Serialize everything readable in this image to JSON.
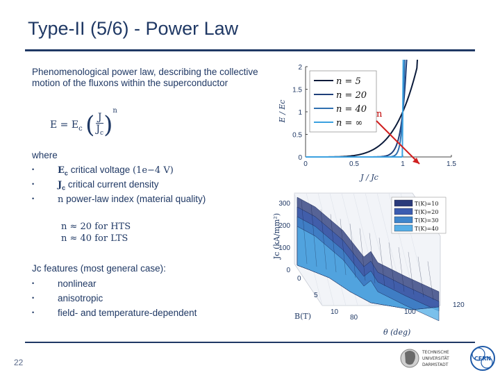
{
  "title": "Type-II (5/6) - Power Law",
  "page_number": "22",
  "intro": "Phenomenological power law, describing the collective motion of the fluxons within the superconductor",
  "formula": {
    "lhs": "E = E",
    "lhs_sub": "c",
    "num": "J",
    "den": "J",
    "den_sub": "c",
    "exp": "n"
  },
  "where_label": "where",
  "definitions": [
    {
      "sym": "E",
      "sub": "c",
      "text": " critical voltage ",
      "extra": "(1e−4 V)"
    },
    {
      "sym": "J",
      "sub": "c",
      "text": " critical current density",
      "extra": ""
    },
    {
      "sym": "n",
      "sub": "",
      "text": " power-law index (material quality)",
      "extra": ""
    }
  ],
  "n_values": [
    "n ≈ 20 for HTS",
    "n ≈ 40 for LTS"
  ],
  "features_head": "Jc features (most general case):",
  "features": [
    "nonlinear",
    "anisotropic",
    "field- and temperature-dependent"
  ],
  "bullet": "•",
  "chart_data": [
    {
      "type": "line",
      "xlabel": "J / Jc",
      "ylabel": "E / Ec",
      "xlim": [
        0,
        1.5
      ],
      "ylim": [
        0,
        2
      ],
      "xticks": [
        "0",
        "0.5",
        "1",
        "1.5"
      ],
      "yticks": [
        "0",
        "0.5",
        "1",
        "1.5",
        "2"
      ],
      "legend_position": "top-left",
      "annotation": "n",
      "series": [
        {
          "name": "n = 5",
          "n": 5,
          "color": "#0a1a3a"
        },
        {
          "name": "n = 20",
          "n": 20,
          "color": "#1f3f7a"
        },
        {
          "name": "n = 40",
          "n": 40,
          "color": "#2f6fb0"
        },
        {
          "name": "n = ∞",
          "n": 1000,
          "color": "#3aa0e0"
        }
      ]
    },
    {
      "type": "surface",
      "xlabel": "B(T)",
      "ylabel": "θ (deg)",
      "zlabel": "Jc (kA/mm²)",
      "zticks": [
        "0",
        "100",
        "200",
        "300"
      ],
      "xticks": [
        "0",
        "5",
        "10"
      ],
      "yticks": [
        "80",
        "100",
        "120"
      ],
      "legend_position": "top-right",
      "legend": [
        "T(K)=10",
        "T(K)=20",
        "T(K)=30",
        "T(K)=40"
      ],
      "legend_colors": [
        "#2a3a7a",
        "#3b5cb0",
        "#3f86cc",
        "#56aee6"
      ]
    }
  ],
  "logos": {
    "left_line1": "TECHNISCHE",
    "left_line2": "UNIVERSITÄT",
    "left_line3": "DARMSTADT",
    "right": "CERN"
  }
}
